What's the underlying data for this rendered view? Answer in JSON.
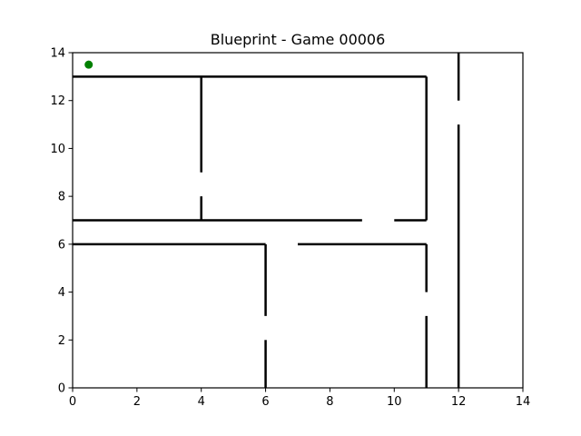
{
  "title": "Blueprint - Game 00006",
  "axes": {
    "xlim": [
      0,
      14
    ],
    "ylim": [
      0,
      14
    ],
    "xticks": [
      0,
      2,
      4,
      6,
      8,
      10,
      12,
      14
    ],
    "yticks": [
      0,
      2,
      4,
      6,
      8,
      10,
      12,
      14
    ]
  },
  "maze": {
    "wall_color": "#000000",
    "walls": [
      {
        "x1": 0,
        "y1": 13,
        "x2": 11,
        "y2": 13
      },
      {
        "x1": 4,
        "y1": 13,
        "x2": 4,
        "y2": 9
      },
      {
        "x1": 4,
        "y1": 8,
        "x2": 4,
        "y2": 7
      },
      {
        "x1": 11,
        "y1": 13,
        "x2": 11,
        "y2": 7
      },
      {
        "x1": 0,
        "y1": 7,
        "x2": 9,
        "y2": 7
      },
      {
        "x1": 10,
        "y1": 7,
        "x2": 11,
        "y2": 7
      },
      {
        "x1": 12,
        "y1": 14,
        "x2": 12,
        "y2": 12
      },
      {
        "x1": 12,
        "y1": 11,
        "x2": 12,
        "y2": 0
      },
      {
        "x1": 0,
        "y1": 6,
        "x2": 6,
        "y2": 6
      },
      {
        "x1": 7,
        "y1": 6,
        "x2": 11,
        "y2": 6
      },
      {
        "x1": 6,
        "y1": 6,
        "x2": 6,
        "y2": 3
      },
      {
        "x1": 6,
        "y1": 2,
        "x2": 6,
        "y2": 0
      },
      {
        "x1": 11,
        "y1": 6,
        "x2": 11,
        "y2": 4
      },
      {
        "x1": 11,
        "y1": 3,
        "x2": 11,
        "y2": 0
      }
    ]
  },
  "player": {
    "x": 0.5,
    "y": 13.5,
    "color": "#008000"
  }
}
